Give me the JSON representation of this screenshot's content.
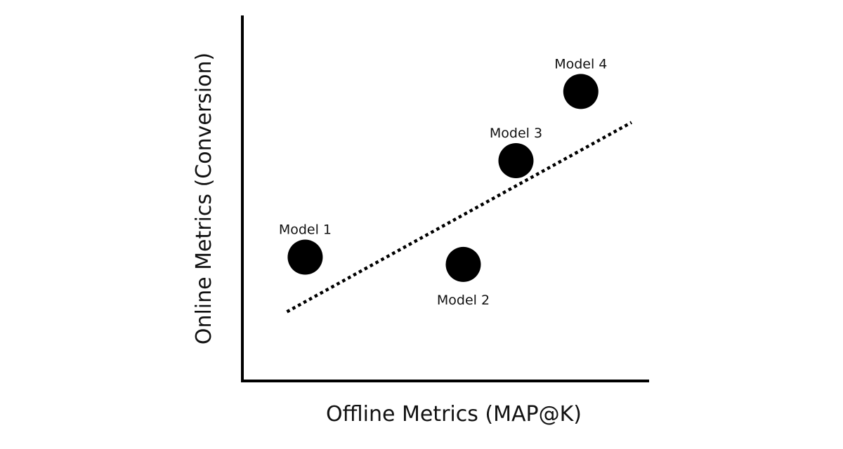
{
  "chart_data": {
    "type": "scatter",
    "title": "",
    "xlabel": "Offline Metrics (MAP@K)",
    "ylabel": "Online Metrics (Conversion)",
    "xlim": [
      0,
      100
    ],
    "ylim": [
      0,
      100
    ],
    "grid": false,
    "axis_ticks": false,
    "marker_color": "#000000",
    "points": [
      {
        "label": "Model 1",
        "x": 15.5,
        "y": 34.0,
        "label_position": "above"
      },
      {
        "label": "Model 2",
        "x": 54.5,
        "y": 32.0,
        "label_position": "below"
      },
      {
        "label": "Model 3",
        "x": 67.5,
        "y": 60.5,
        "label_position": "above"
      },
      {
        "label": "Model 4",
        "x": 83.5,
        "y": 79.5,
        "label_position": "above"
      }
    ],
    "trend_line": {
      "style": "dotted",
      "color": "#000000",
      "start": {
        "x": 11,
        "y": 19
      },
      "end": {
        "x": 96,
        "y": 71
      }
    }
  }
}
